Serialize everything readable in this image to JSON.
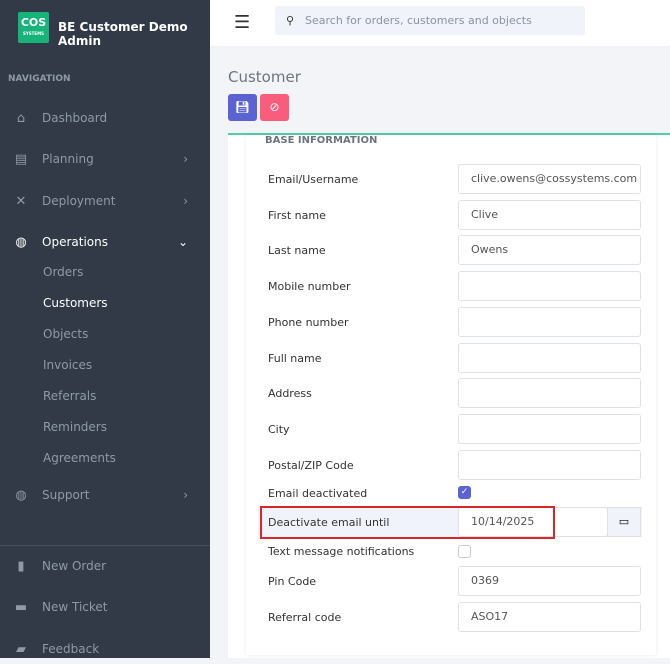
{
  "brand": {
    "logo": "COS",
    "logo_sub": "SYSTEMS",
    "title": "BE Customer Demo Admin"
  },
  "nav": {
    "header": "NAVIGATION",
    "items": [
      {
        "label": "Dashboard",
        "icon": "home-icon"
      },
      {
        "label": "Planning",
        "icon": "planning-icon"
      },
      {
        "label": "Deployment",
        "icon": "tools-icon"
      },
      {
        "label": "Operations",
        "icon": "globe-icon"
      },
      {
        "label": "Support",
        "icon": "globe-icon"
      }
    ],
    "sub": [
      "Orders",
      "Customers",
      "Objects",
      "Invoices",
      "Referrals",
      "Reminders",
      "Agreements"
    ],
    "bottom": [
      "New Order",
      "New Ticket",
      "Feedback"
    ]
  },
  "search": {
    "placeholder": "Search for orders, customers and objects"
  },
  "page": {
    "title": "Customer",
    "section": "BASE INFORMATION"
  },
  "colors": {
    "save": "#5b63d3",
    "cancel": "#fa5c7c",
    "accent": "#4fd1a5"
  },
  "fields": [
    {
      "label": "Email/Username",
      "value": "clive.owens@cossystems.com"
    },
    {
      "label": "First name",
      "value": "Clive"
    },
    {
      "label": "Last name",
      "value": "Owens"
    },
    {
      "label": "Mobile number",
      "value": ""
    },
    {
      "label": "Phone number",
      "value": ""
    },
    {
      "label": "Full name",
      "value": ""
    },
    {
      "label": "Address",
      "value": ""
    },
    {
      "label": "City",
      "value": ""
    },
    {
      "label": "Postal/ZIP Code",
      "value": ""
    }
  ],
  "email_deactivated": {
    "label": "Email deactivated",
    "checked": true
  },
  "deactivate_until": {
    "label": "Deactivate email until",
    "value": "10/14/2025"
  },
  "text_notifications": {
    "label": "Text message notifications",
    "checked": false
  },
  "pin": {
    "label": "Pin Code",
    "value": "0369"
  },
  "referral": {
    "label": "Referral code",
    "value": "ASO17"
  }
}
